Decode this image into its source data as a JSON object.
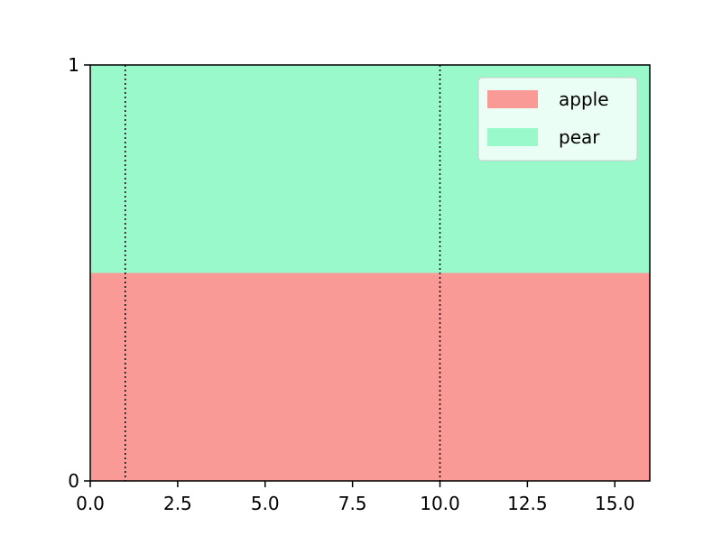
{
  "chart_data": {
    "type": "area",
    "stacked": true,
    "x": [
      0,
      16
    ],
    "series": [
      {
        "name": "apple",
        "color": "#fa9a96",
        "values": [
          0.5,
          0.5
        ]
      },
      {
        "name": "pear",
        "color": "#9af9cb",
        "values": [
          0.5,
          0.5
        ]
      }
    ],
    "xlim": [
      0,
      16
    ],
    "xticks": [
      {
        "value": 0,
        "label": "0.0"
      },
      2.5,
      {
        "value": 5,
        "label": "5.0"
      },
      7.5,
      {
        "value": 10,
        "label": "10.0"
      },
      12.5,
      {
        "value": 15,
        "label": "15.0"
      }
    ],
    "ylim": [
      0,
      1
    ],
    "yticks": [
      0,
      1
    ],
    "vlines": [
      1,
      10
    ],
    "legend": "upper right"
  }
}
